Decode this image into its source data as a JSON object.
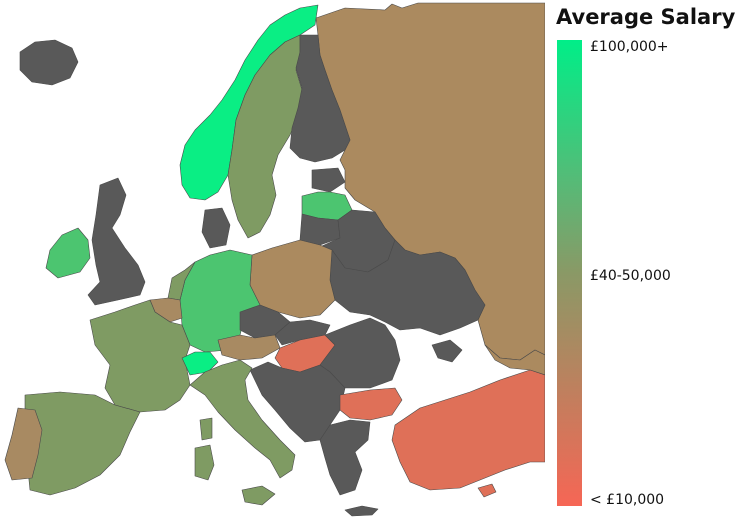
{
  "legend": {
    "title": "Average Salary",
    "labels": {
      "top": "£100,000+",
      "mid": "£40-50,000",
      "bottom": "< £10,000"
    },
    "gradient": [
      "#00ee88",
      "#55bb77",
      "#8a9966",
      "#b8835f",
      "#f66655"
    ]
  },
  "colors": {
    "no_data": "#595959",
    "very_high": "#0aee84",
    "high": "#4cc570",
    "mid_high": "#6fa668",
    "mid": "#7f9b63",
    "mid_low": "#a88a62",
    "low": "#ab8a5f",
    "very_low": "#df7058",
    "sea": "#ffffff"
  },
  "countries": [
    {
      "name": "Norway",
      "tier": "very_high"
    },
    {
      "name": "Sweden",
      "tier": "mid"
    },
    {
      "name": "Finland",
      "tier": "no_data"
    },
    {
      "name": "Iceland",
      "tier": "no_data"
    },
    {
      "name": "Russia",
      "tier": "low"
    },
    {
      "name": "United Kingdom",
      "tier": "no_data"
    },
    {
      "name": "Ireland",
      "tier": "high"
    },
    {
      "name": "Denmark",
      "tier": "no_data"
    },
    {
      "name": "Latvia",
      "tier": "high"
    },
    {
      "name": "Estonia",
      "tier": "no_data"
    },
    {
      "name": "Lithuania",
      "tier": "no_data"
    },
    {
      "name": "Belarus",
      "tier": "no_data"
    },
    {
      "name": "Ukraine",
      "tier": "no_data"
    },
    {
      "name": "Poland",
      "tier": "low"
    },
    {
      "name": "Germany",
      "tier": "high"
    },
    {
      "name": "Netherlands",
      "tier": "mid"
    },
    {
      "name": "Belgium",
      "tier": "mid_low"
    },
    {
      "name": "France",
      "tier": "mid"
    },
    {
      "name": "Switzerland",
      "tier": "very_high"
    },
    {
      "name": "Austria",
      "tier": "mid_low"
    },
    {
      "name": "Czech Republic",
      "tier": "no_data"
    },
    {
      "name": "Hungary",
      "tier": "very_low"
    },
    {
      "name": "Bulgaria",
      "tier": "very_low"
    },
    {
      "name": "Turkey",
      "tier": "very_low"
    },
    {
      "name": "Spain",
      "tier": "mid"
    },
    {
      "name": "Portugal",
      "tier": "mid_low"
    },
    {
      "name": "Italy",
      "tier": "mid"
    },
    {
      "name": "Romania",
      "tier": "no_data"
    },
    {
      "name": "Balkans",
      "tier": "no_data"
    },
    {
      "name": "Greece",
      "tier": "no_data"
    },
    {
      "name": "Caucasus",
      "tier": "low"
    }
  ]
}
